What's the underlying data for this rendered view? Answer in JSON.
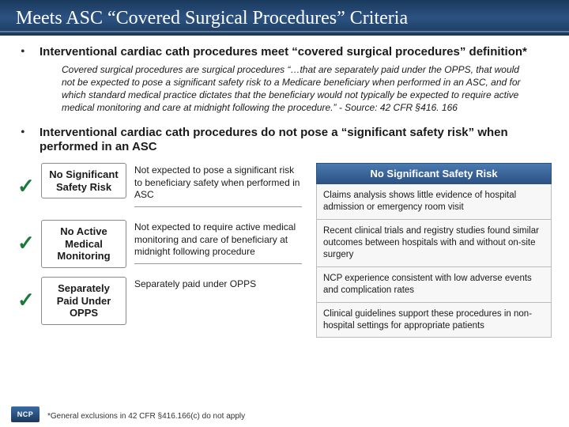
{
  "colors": {
    "header_bg_top": "#1a3a5c",
    "header_bg_mid": "#2c5282",
    "title_color": "#ffffff",
    "text_color": "#1a1a1a",
    "check_color": "#1a7a3a",
    "box_border": "#888888",
    "right_header_bg": "#2c5282",
    "cell_bg": "#f7f7f7"
  },
  "fonts": {
    "title_family": "Georgia",
    "body_family": "Arial",
    "title_size_pt": 24,
    "bullet_size_pt": 15,
    "quote_size_pt": 12,
    "box_label_size_pt": 13,
    "desc_size_pt": 12,
    "cell_size_pt": 11.5,
    "footnote_size_pt": 10
  },
  "title": "Meets ASC “Covered Surgical Procedures” Criteria",
  "bullet1": "Interventional cardiac cath procedures meet “covered surgical procedures” definition*",
  "quote": "Covered surgical procedures are surgical procedures “…that are separately paid under the OPPS, that would not be expected to pose a significant safety risk to a Medicare beneficiary when performed in an ASC, and for which standard medical practice dictates that the beneficiary would not typically be expected to require active medical monitoring and care at midnight following the procedure.”  - Source: 42 CFR §416. 166",
  "bullet2": "Interventional cardiac cath procedures do not pose a “significant safety risk” when performed in an ASC",
  "checks": [
    {
      "label": "No Significant Safety Risk",
      "desc": "Not expected to pose a significant risk to beneficiary safety when performed in ASC"
    },
    {
      "label": "No Active Medical Monitoring",
      "desc": "Not expected to require active medical monitoring and care of beneficiary at midnight following procedure"
    },
    {
      "label": "Separately Paid Under OPPS",
      "desc": "Separately paid under OPPS"
    }
  ],
  "right_header": "No Significant Safety Risk",
  "right_cells": [
    "Claims analysis shows little evidence of hospital admission or emergency room visit",
    "Recent clinical trials and registry studies found similar outcomes between hospitals with and without on-site surgery",
    "NCP experience consistent with low adverse events and complication rates",
    "Clinical guidelines support these procedures in non-hospital settings for appropriate patients"
  ],
  "footnote": "*General exclusions in 42 CFR §416.166(c) do not apply",
  "logo_text": "NCP"
}
